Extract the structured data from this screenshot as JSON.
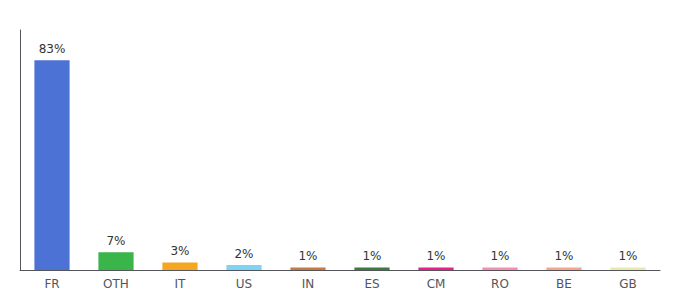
{
  "chart_data": {
    "type": "bar",
    "categories": [
      "FR",
      "OTH",
      "IT",
      "US",
      "IN",
      "ES",
      "CM",
      "RO",
      "BE",
      "GB"
    ],
    "values": [
      83,
      7,
      3,
      2,
      1,
      1,
      1,
      1,
      1,
      1
    ],
    "value_labels": [
      "83%",
      "7%",
      "3%",
      "2%",
      "1%",
      "1%",
      "1%",
      "1%",
      "1%",
      "1%"
    ],
    "colors": [
      "#4c72d5",
      "#3ab54a",
      "#f5a623",
      "#7fd4f5",
      "#c87941",
      "#3d7a3d",
      "#e91e8c",
      "#f48fb1",
      "#f4a68c",
      "#e8e8b0"
    ],
    "ylim": [
      0,
      95
    ],
    "data_labels": true,
    "tick_labels": "x",
    "grid": false
  }
}
